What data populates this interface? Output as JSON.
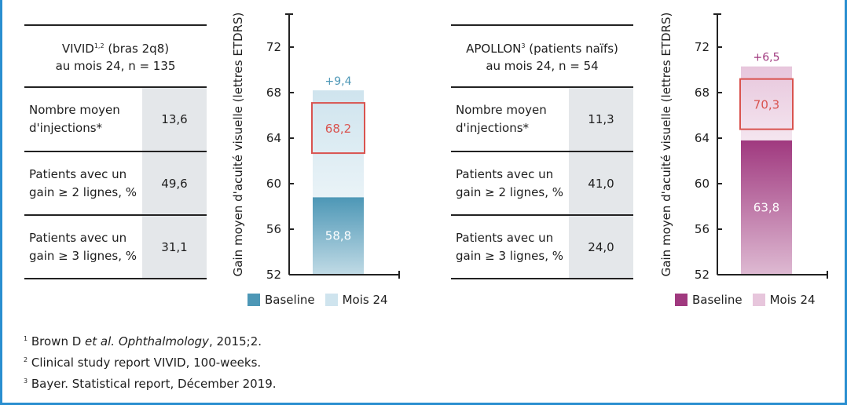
{
  "panels": [
    {
      "header_name": "VIVID",
      "header_sup": "1,2",
      "header_rest": " (bras 2q8)",
      "header_line2": "au mois 24, n = 135",
      "rows": [
        {
          "label": "Nombre moyen d'injections*",
          "value": "13,6"
        },
        {
          "label": "Patients avec un gain ≥ 2 lignes, %",
          "value": "49,6"
        },
        {
          "label": "Patients avec un gain ≥ 3 lignes, %",
          "value": "31,1"
        }
      ]
    },
    {
      "header_name": "APOLLON",
      "header_sup": "3",
      "header_rest": " (patients naïfs)",
      "header_line2": "au mois 24, n = 54",
      "rows": [
        {
          "label": "Nombre moyen d'injections*",
          "value": "11,3"
        },
        {
          "label": "Patients avec un gain ≥ 2 lignes, %",
          "value": "41,0"
        },
        {
          "label": "Patients avec un gain ≥ 3 lignes, %",
          "value": "24,0"
        }
      ]
    }
  ],
  "chart_data": [
    {
      "type": "bar",
      "stacked": true,
      "ylabel": "Gain moyen d'acuité visuelle (lettres ETDRS)",
      "ylim": [
        52,
        74
      ],
      "yticks": [
        52,
        56,
        60,
        64,
        68,
        72
      ],
      "series": [
        {
          "name": "Baseline",
          "value": 58.8,
          "label": "58,8",
          "color": "#4d97b6"
        },
        {
          "name": "Mois 24",
          "value": 68.2,
          "gain_label": "+9,4",
          "color": "#cfe4ee"
        }
      ],
      "highlight_label": "68,2",
      "highlight_color": "#d9534f",
      "gain_color": "#4d97b6"
    },
    {
      "type": "bar",
      "stacked": true,
      "ylabel": "Gain moyen d'acuité visuelle (lettres ETDRS)",
      "ylim": [
        52,
        74
      ],
      "yticks": [
        52,
        56,
        60,
        64,
        68,
        72
      ],
      "series": [
        {
          "name": "Baseline",
          "value": 63.8,
          "label": "63,8",
          "color": "#a0397f"
        },
        {
          "name": "Mois 24",
          "value": 70.3,
          "gain_label": "+6,5",
          "color": "#e7c6dc"
        }
      ],
      "highlight_label": "70,3",
      "highlight_color": "#d9534f",
      "gain_color": "#a0397f"
    }
  ],
  "footnotes": [
    {
      "num": "1",
      "text_a": "Brown D ",
      "text_i": "et al. Ophthalmology",
      "text_b": ", 2015;2."
    },
    {
      "num": "2",
      "text": "Clinical study report VIVID, 100-weeks."
    },
    {
      "num": "3",
      "text": "Bayer. Statistical report, Décember 2019."
    }
  ]
}
